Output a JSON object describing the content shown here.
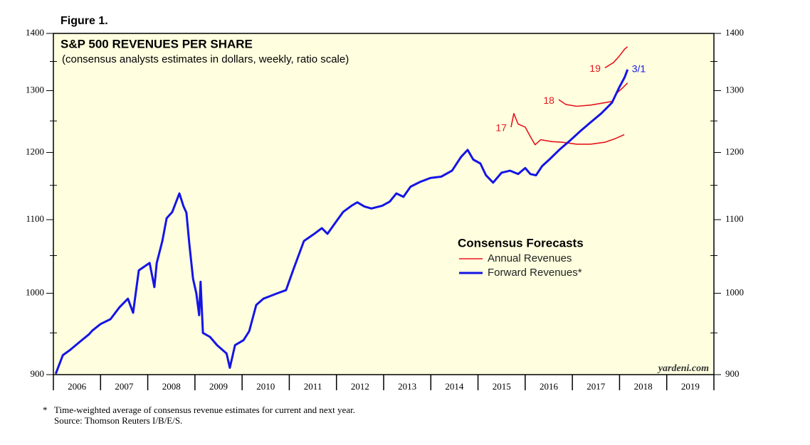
{
  "figure_label": "Figure 1.",
  "chart_data": {
    "type": "line",
    "title": "S&P 500 REVENUES PER SHARE",
    "subtitle": "(consensus analysts estimates in dollars, weekly, ratio scale)",
    "log_scale": true,
    "ylim": [
      900,
      1400
    ],
    "yticks": [
      900,
      1000,
      1100,
      1200,
      1300,
      1400
    ],
    "y2lim": [
      900,
      1400
    ],
    "y2ticks": [
      900,
      1000,
      1100,
      1200,
      1300,
      1400
    ],
    "yminorticks": [
      950,
      1050,
      1150,
      1250,
      1350
    ],
    "xlim": [
      2006,
      2020
    ],
    "xticks": [
      2006,
      2007,
      2008,
      2009,
      2010,
      2011,
      2012,
      2013,
      2014,
      2015,
      2016,
      2017,
      2018,
      2019,
      2020
    ],
    "categories": [
      "2006",
      "2007",
      "2008",
      "2009",
      "2010",
      "2011",
      "2012",
      "2013",
      "2014",
      "2015",
      "2016",
      "2017",
      "2018",
      "2019"
    ],
    "background": "#ffffe0",
    "legend_title": "Consensus Forecasts",
    "series": [
      {
        "name": "Annual Revenues",
        "color": "#e8141c",
        "lines": [
          {
            "label": "17",
            "x": [
              2015.7,
              2015.76,
              2015.85,
              2016.0,
              2016.11,
              2016.21,
              2016.33,
              2016.56,
              2016.78,
              2017.09,
              2017.39,
              2017.69,
              2017.92,
              2018.1
            ],
            "values": [
              1240,
              1262,
              1245,
              1240,
              1225,
              1212,
              1220,
              1217,
              1216,
              1213,
              1213,
              1216,
              1222,
              1228
            ]
          },
          {
            "label": "18",
            "x": [
              2016.71,
              2016.86,
              2017.09,
              2017.39,
              2017.69,
              2017.84,
              2017.93,
              2018.07,
              2018.17
            ],
            "values": [
              1285,
              1277,
              1274,
              1276,
              1280,
              1282,
              1295,
              1305,
              1313
            ]
          },
          {
            "label": "19",
            "x": [
              2017.69,
              2017.87,
              2017.99,
              2018.11,
              2018.17
            ],
            "values": [
              1339,
              1348,
              1359,
              1372,
              1376
            ]
          }
        ]
      },
      {
        "name": "Forward Revenues*",
        "color": "#1414e6",
        "end_label": "3/1",
        "x": [
          2006.05,
          2006.2,
          2006.35,
          2006.6,
          2006.75,
          2006.83,
          2007.0,
          2007.21,
          2007.4,
          2007.58,
          2007.69,
          2007.81,
          2008.04,
          2008.14,
          2008.19,
          2008.31,
          2008.4,
          2008.52,
          2008.67,
          2008.76,
          2008.82,
          2008.88,
          2008.96,
          2009.03,
          2009.09,
          2009.12,
          2009.17,
          2009.32,
          2009.47,
          2009.67,
          2009.74,
          2009.85,
          2010.03,
          2010.15,
          2010.3,
          2010.45,
          2010.75,
          2010.93,
          2011.08,
          2011.31,
          2011.51,
          2011.69,
          2011.81,
          2011.99,
          2012.14,
          2012.32,
          2012.44,
          2012.59,
          2012.74,
          2012.97,
          2013.13,
          2013.27,
          2013.42,
          2013.57,
          2013.77,
          2013.99,
          2014.22,
          2014.45,
          2014.64,
          2014.78,
          2014.9,
          2015.05,
          2015.17,
          2015.32,
          2015.5,
          2015.68,
          2015.85,
          2016.0,
          2016.11,
          2016.23,
          2016.36,
          2016.51,
          2016.72,
          2016.94,
          2017.16,
          2017.39,
          2017.61,
          2017.84,
          2017.99,
          2018.11,
          2018.17
        ],
        "values": [
          901,
          923,
          929,
          941,
          948,
          953,
          961,
          967,
          982,
          993,
          975,
          1030,
          1040,
          1008,
          1040,
          1070,
          1102,
          1111,
          1138,
          1119,
          1110,
          1067,
          1019,
          1000,
          972,
          1015,
          950,
          945,
          935,
          925,
          908,
          935,
          941,
          952,
          985,
          993,
          1000,
          1004,
          1030,
          1070,
          1079,
          1088,
          1080,
          1097,
          1111,
          1120,
          1125,
          1119,
          1116,
          1120,
          1126,
          1138,
          1133,
          1148,
          1155,
          1161,
          1163,
          1172,
          1193,
          1204,
          1189,
          1183,
          1165,
          1154,
          1169,
          1172,
          1167,
          1176,
          1167,
          1165,
          1179,
          1189,
          1204,
          1218,
          1233,
          1248,
          1262,
          1280,
          1305,
          1323,
          1336
        ]
      }
    ],
    "watermark": "yardeni.com",
    "footnote_marker": "*",
    "footnote": "Time-weighted average of consensus revenue estimates for current and next year.",
    "source": "Source: Thomson Reuters I/B/E/S."
  }
}
